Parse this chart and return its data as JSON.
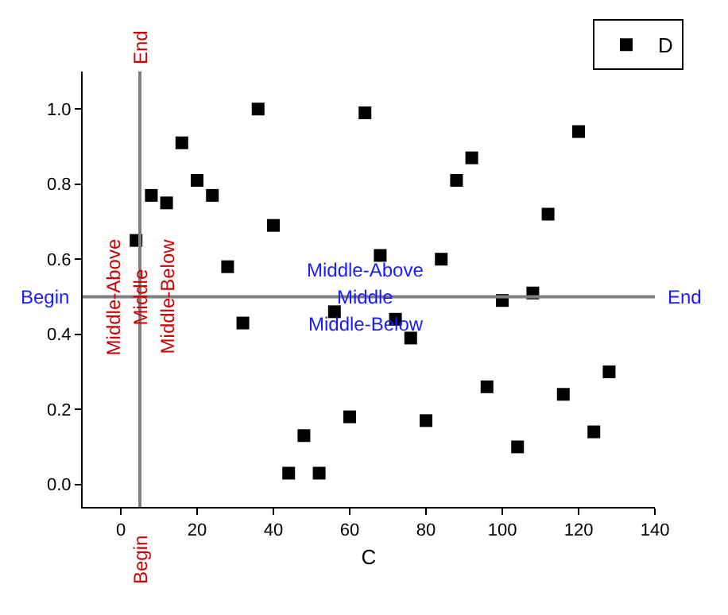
{
  "chart_data": {
    "type": "scatter",
    "xlabel": "C",
    "x": [
      4,
      8,
      12,
      16,
      20,
      24,
      28,
      32,
      36,
      40,
      44,
      48,
      52,
      56,
      60,
      64,
      68,
      72,
      76,
      80,
      84,
      88,
      92,
      96,
      100,
      104,
      108,
      112,
      116,
      120,
      124,
      128
    ],
    "series": [
      {
        "name": "D",
        "color": "#000000",
        "values": [
          0.65,
          0.77,
          0.75,
          0.91,
          0.81,
          0.77,
          0.58,
          0.43,
          1.0,
          0.69,
          0.03,
          0.13,
          0.03,
          0.46,
          0.18,
          0.99,
          0.61,
          0.44,
          0.39,
          0.17,
          0.6,
          0.81,
          0.87,
          0.26,
          0.49,
          0.1,
          0.51,
          0.72,
          0.24,
          0.94,
          0.14,
          0.3
        ]
      }
    ],
    "marker": "square",
    "legend": "top right",
    "grid": false,
    "xlim": [
      -10,
      140
    ],
    "xticks": [
      0,
      20,
      40,
      60,
      80,
      100,
      120,
      140
    ],
    "ylim": [
      -0.06,
      1.1
    ],
    "yticks": [
      {
        "value": 0,
        "label": "0.0"
      },
      {
        "value": 0.2,
        "label": "0.2"
      },
      {
        "value": 0.4,
        "label": "0.4"
      },
      {
        "value": 0.6,
        "label": "0.6"
      },
      {
        "value": 0.8,
        "label": "0.8"
      },
      {
        "value": 1,
        "label": "1.0"
      }
    ],
    "ref_lines": [
      {
        "axis": "x",
        "value": 5,
        "color": "#808080"
      },
      {
        "axis": "y",
        "value": 0.5,
        "color": "#808080"
      }
    ],
    "annotations": [
      {
        "text": "End",
        "x": 5,
        "y": 1.1
      },
      {
        "text": "Middle-Above",
        "x": 5,
        "y": 0.5
      },
      {
        "text": "Middle",
        "x": 5,
        "y": 0.5
      },
      {
        "text": "Middle-Below",
        "x": 5,
        "y": 0.5
      },
      {
        "text": "Begin",
        "x": 5,
        "y": -0.06
      },
      {
        "text": "Begin",
        "x": -10,
        "y": 0.5
      },
      {
        "text": "Middle-Above",
        "x": 64,
        "y": 0.5
      },
      {
        "text": "Middle",
        "x": 64,
        "y": 0.5
      },
      {
        "text": "Middle-Below",
        "x": 64,
        "y": 0.5
      },
      {
        "text": "End",
        "x": 140,
        "y": 0.5
      }
    ]
  }
}
